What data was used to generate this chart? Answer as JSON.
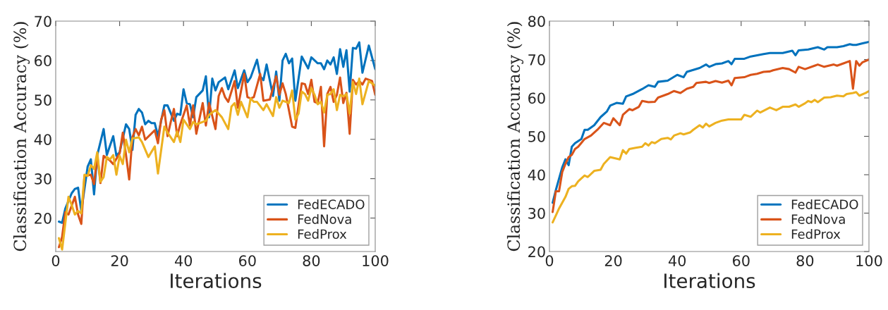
{
  "chart_data": [
    {
      "type": "line",
      "xlabel": "Iterations",
      "ylabel": "Classification Accuracy (%)",
      "xlim": [
        0,
        100
      ],
      "xticks": [
        0,
        20,
        40,
        60,
        80,
        100
      ],
      "ylim": [
        11.5,
        70
      ],
      "yticks": [
        20,
        30,
        40,
        50,
        60,
        70
      ],
      "legend": "bottom right",
      "grid": false,
      "marker": "none",
      "line_style": "solid",
      "series": [
        {
          "name": "FedECADO",
          "color": "#0072bd",
          "x": [
            1,
            2,
            3,
            5,
            6,
            7,
            8,
            10,
            11,
            12,
            13,
            15,
            16,
            18,
            19,
            20,
            22,
            23,
            24,
            25,
            26,
            27,
            28,
            29,
            30,
            31,
            32,
            34,
            35,
            37,
            38,
            39,
            40,
            41,
            42,
            43,
            44,
            46,
            47,
            48,
            49,
            50,
            51,
            53,
            54,
            56,
            57,
            59,
            60,
            61,
            63,
            64,
            65,
            66,
            68,
            69,
            70,
            71,
            72,
            73,
            74,
            75,
            77,
            79,
            80,
            82,
            83,
            84,
            85,
            86,
            87,
            88,
            89,
            90,
            91,
            92,
            93,
            94,
            95,
            96,
            98,
            100
          ],
          "values": [
            19.1,
            18.8,
            22.4,
            26.3,
            27.4,
            27.7,
            21.8,
            33.1,
            34.9,
            26,
            36,
            42.6,
            36,
            40.8,
            35.8,
            36.7,
            43.8,
            42.6,
            37.3,
            46.2,
            47.7,
            46.8,
            43.8,
            44.7,
            44.1,
            44.1,
            40.8,
            48.6,
            48.6,
            44.7,
            46.5,
            46.2,
            52.7,
            49.2,
            48.9,
            45.6,
            50.7,
            52.4,
            56,
            45.6,
            55.4,
            52.4,
            54.5,
            55.7,
            52.7,
            57.5,
            53,
            57.5,
            54.5,
            55.7,
            60.2,
            56,
            55,
            59,
            51,
            57.2,
            49.8,
            60,
            61.7,
            59.3,
            60.5,
            49.8,
            61,
            58,
            60.8,
            59.3,
            59.3,
            57.8,
            60,
            59,
            60.8,
            56.6,
            62.9,
            58.4,
            62.6,
            52.1,
            63.2,
            63,
            64.6,
            56.9,
            63.8,
            57.8
          ]
        },
        {
          "name": "FedNova",
          "color": "#d95319",
          "x": [
            1,
            2,
            3,
            4,
            6,
            7,
            8,
            9,
            11,
            12,
            13,
            14,
            15,
            17,
            18,
            20,
            21,
            22,
            23,
            24,
            25,
            26,
            27,
            28,
            31,
            32,
            33,
            34,
            35,
            36,
            37,
            38,
            39,
            41,
            42,
            43,
            44,
            46,
            47,
            48,
            50,
            51,
            52,
            53,
            54,
            56,
            57,
            59,
            60,
            61,
            62,
            64,
            65,
            67,
            69,
            70,
            71,
            72,
            74,
            75,
            77,
            78,
            79,
            80,
            81,
            82,
            83,
            84,
            85,
            86,
            87,
            88,
            89,
            90,
            91,
            92,
            93,
            94,
            95,
            96,
            97,
            99,
            100
          ],
          "values": [
            12.6,
            15.2,
            21.5,
            20.9,
            25.4,
            20.9,
            18.5,
            30.7,
            31,
            28.6,
            36,
            28.9,
            35.8,
            34.6,
            33.7,
            36.4,
            41.7,
            36,
            29.8,
            40.5,
            42.6,
            41,
            43.2,
            39.9,
            42.3,
            39,
            45,
            47.4,
            40.8,
            44.4,
            47.7,
            40.8,
            43.8,
            48.6,
            43.5,
            48.6,
            41.4,
            49.2,
            43.5,
            49.2,
            42.6,
            51,
            53,
            50.7,
            49.5,
            54.8,
            48,
            56.6,
            50.7,
            50.4,
            50.7,
            56.6,
            49.8,
            50.1,
            56,
            51.3,
            54.2,
            51.5,
            43.2,
            42.9,
            54.2,
            54,
            51.5,
            55.1,
            49.5,
            49.2,
            53.3,
            38.2,
            51.5,
            53.3,
            49.5,
            51.3,
            55.7,
            49.2,
            51.8,
            41.4,
            55.1,
            53.9,
            54.8,
            53.9,
            55.4,
            54.8,
            51.3
          ]
        },
        {
          "name": "FedProx",
          "color": "#edb120",
          "x": [
            1,
            2,
            4,
            5,
            6,
            7,
            8,
            9,
            10,
            11,
            12,
            13,
            14,
            15,
            16,
            17,
            18,
            19,
            20,
            21,
            22,
            23,
            24,
            26,
            27,
            29,
            31,
            32,
            34,
            35,
            37,
            38,
            39,
            40,
            42,
            43,
            44,
            47,
            48,
            50,
            52,
            54,
            55,
            56,
            57,
            58,
            60,
            61,
            62,
            63,
            65,
            66,
            68,
            69,
            70,
            71,
            73,
            74,
            75,
            76,
            77,
            78,
            79,
            80,
            81,
            82,
            83,
            84,
            85,
            86,
            87,
            88,
            89,
            90,
            91,
            92,
            93,
            94,
            95,
            96,
            98,
            100
          ],
          "values": [
            14.9,
            12,
            25.4,
            23.3,
            20.9,
            21.8,
            21.2,
            31,
            30.7,
            33.4,
            32.5,
            36.7,
            29.2,
            30.4,
            35.5,
            34.9,
            36,
            31,
            35.8,
            33.7,
            39.9,
            36.7,
            40.2,
            40.5,
            39.3,
            35.5,
            38.2,
            31.3,
            43.2,
            41.7,
            39.3,
            42,
            39.3,
            45,
            42.6,
            44.4,
            43.8,
            44.7,
            46.2,
            47.4,
            45.6,
            42.6,
            48.3,
            49.2,
            46.2,
            49.5,
            45.6,
            50.4,
            49.5,
            49.5,
            47.4,
            48.9,
            45.9,
            50.7,
            48,
            49.8,
            49.2,
            52.4,
            45,
            46.5,
            52.1,
            51.5,
            49.8,
            53,
            51.3,
            48.9,
            49.5,
            46.8,
            51.3,
            51.5,
            52.7,
            47.4,
            51.3,
            50.9,
            51.5,
            46.5,
            54.5,
            51.5,
            55.4,
            48.9,
            54.8,
            53.6
          ]
        }
      ]
    },
    {
      "type": "line",
      "xlabel": "Iterations",
      "ylabel": "Classification Accuracy (%)",
      "xlim": [
        0,
        100
      ],
      "xticks": [
        0,
        20,
        40,
        60,
        80,
        100
      ],
      "ylim": [
        20,
        80
      ],
      "yticks": [
        20,
        30,
        40,
        50,
        60,
        70,
        80
      ],
      "legend": "bottom right",
      "grid": false,
      "marker": "none",
      "line_style": "solid",
      "series": [
        {
          "name": "FedECADO",
          "color": "#0072bd",
          "x": [
            1,
            2,
            4,
            5,
            6,
            7,
            8,
            10,
            11,
            12,
            14,
            16,
            18,
            19,
            21,
            23,
            24,
            26,
            29,
            31,
            33,
            34,
            37,
            40,
            42,
            43,
            45,
            47,
            49,
            50,
            52,
            54,
            56,
            57,
            58,
            61,
            63,
            65,
            67,
            69,
            70,
            73,
            76,
            77,
            78,
            81,
            84,
            86,
            87,
            90,
            92,
            94,
            95,
            96,
            98,
            100
          ],
          "values": [
            32.7,
            36,
            41.9,
            44,
            42.5,
            47.3,
            48.2,
            49.3,
            51.7,
            51.7,
            52.9,
            55,
            56.5,
            58,
            58.7,
            58.5,
            60.4,
            61,
            62.3,
            63.3,
            62.9,
            64.2,
            64.5,
            66,
            65.4,
            66.8,
            67.3,
            67.8,
            68.7,
            68.1,
            68.8,
            69,
            69.6,
            68.8,
            70.2,
            70.2,
            70.8,
            71.1,
            71.4,
            71.7,
            71.7,
            71.7,
            72.3,
            71.1,
            72.4,
            72.6,
            73.2,
            72.6,
            73.2,
            73.2,
            73.5,
            74,
            73.8,
            73.8,
            74.2,
            74.6
          ]
        },
        {
          "name": "FedNova",
          "color": "#d95319",
          "x": [
            1,
            2,
            3,
            4,
            5,
            6,
            7,
            8,
            9,
            11,
            13,
            15,
            17,
            19,
            20,
            22,
            23,
            25,
            26,
            28,
            29,
            31,
            33,
            34,
            37,
            39,
            41,
            43,
            45,
            46,
            49,
            50,
            52,
            54,
            56,
            57,
            58,
            61,
            62,
            63,
            65,
            67,
            69,
            70,
            73,
            75,
            77,
            78,
            80,
            83,
            84,
            86,
            89,
            90,
            92,
            94,
            95,
            96,
            97,
            98,
            100
          ],
          "values": [
            30.3,
            35.7,
            35.7,
            40.7,
            42.8,
            44.6,
            45.2,
            46.7,
            47.3,
            49.3,
            50.2,
            51.7,
            53.5,
            52.9,
            54.7,
            52.9,
            55.6,
            57.1,
            56.8,
            57.7,
            59.2,
            58.9,
            59,
            60.1,
            61,
            61.8,
            61.3,
            62.4,
            62.9,
            63.9,
            64.2,
            63.9,
            64.4,
            64,
            64.5,
            63.3,
            65.2,
            65.4,
            65.7,
            66,
            66.3,
            66.8,
            66.9,
            67.2,
            67.8,
            67.5,
            66.6,
            68.1,
            67.5,
            68.4,
            68.7,
            68.1,
            68.7,
            68.4,
            69,
            69.6,
            62.4,
            69.6,
            68.4,
            69.3,
            70
          ]
        },
        {
          "name": "FedProx",
          "color": "#edb120",
          "x": [
            1,
            2,
            3,
            5,
            6,
            7,
            8,
            9,
            11,
            12,
            14,
            16,
            17,
            19,
            22,
            23,
            24,
            25,
            27,
            29,
            30,
            31,
            32,
            33,
            35,
            37,
            38,
            39,
            41,
            42,
            44,
            45,
            47,
            48,
            49,
            50,
            52,
            54,
            56,
            58,
            60,
            61,
            63,
            65,
            66,
            69,
            71,
            73,
            75,
            77,
            78,
            80,
            81,
            82,
            83,
            84,
            86,
            88,
            90,
            92,
            93,
            95,
            96,
            97,
            99,
            100
          ],
          "values": [
            27.6,
            29.4,
            31.2,
            34.2,
            36.3,
            37,
            37.1,
            38.3,
            39.8,
            39.4,
            41,
            41.3,
            42.8,
            44.6,
            44,
            46.4,
            45.5,
            46.7,
            47,
            47.3,
            48.2,
            47.6,
            48.5,
            48.2,
            49.3,
            49.6,
            49.2,
            50.2,
            50.8,
            50.5,
            51,
            51.7,
            52.9,
            52.3,
            53.3,
            52.6,
            53.5,
            54.1,
            54.4,
            54.4,
            54.4,
            55.6,
            55.1,
            56.7,
            56.2,
            57.5,
            56.8,
            57.7,
            57.7,
            58.3,
            57.7,
            58.6,
            59.2,
            58.9,
            59.5,
            58.9,
            60.1,
            60.2,
            60.6,
            60.4,
            61,
            61.3,
            61.5,
            60.6,
            61.3,
            61.8
          ]
        }
      ]
    }
  ]
}
